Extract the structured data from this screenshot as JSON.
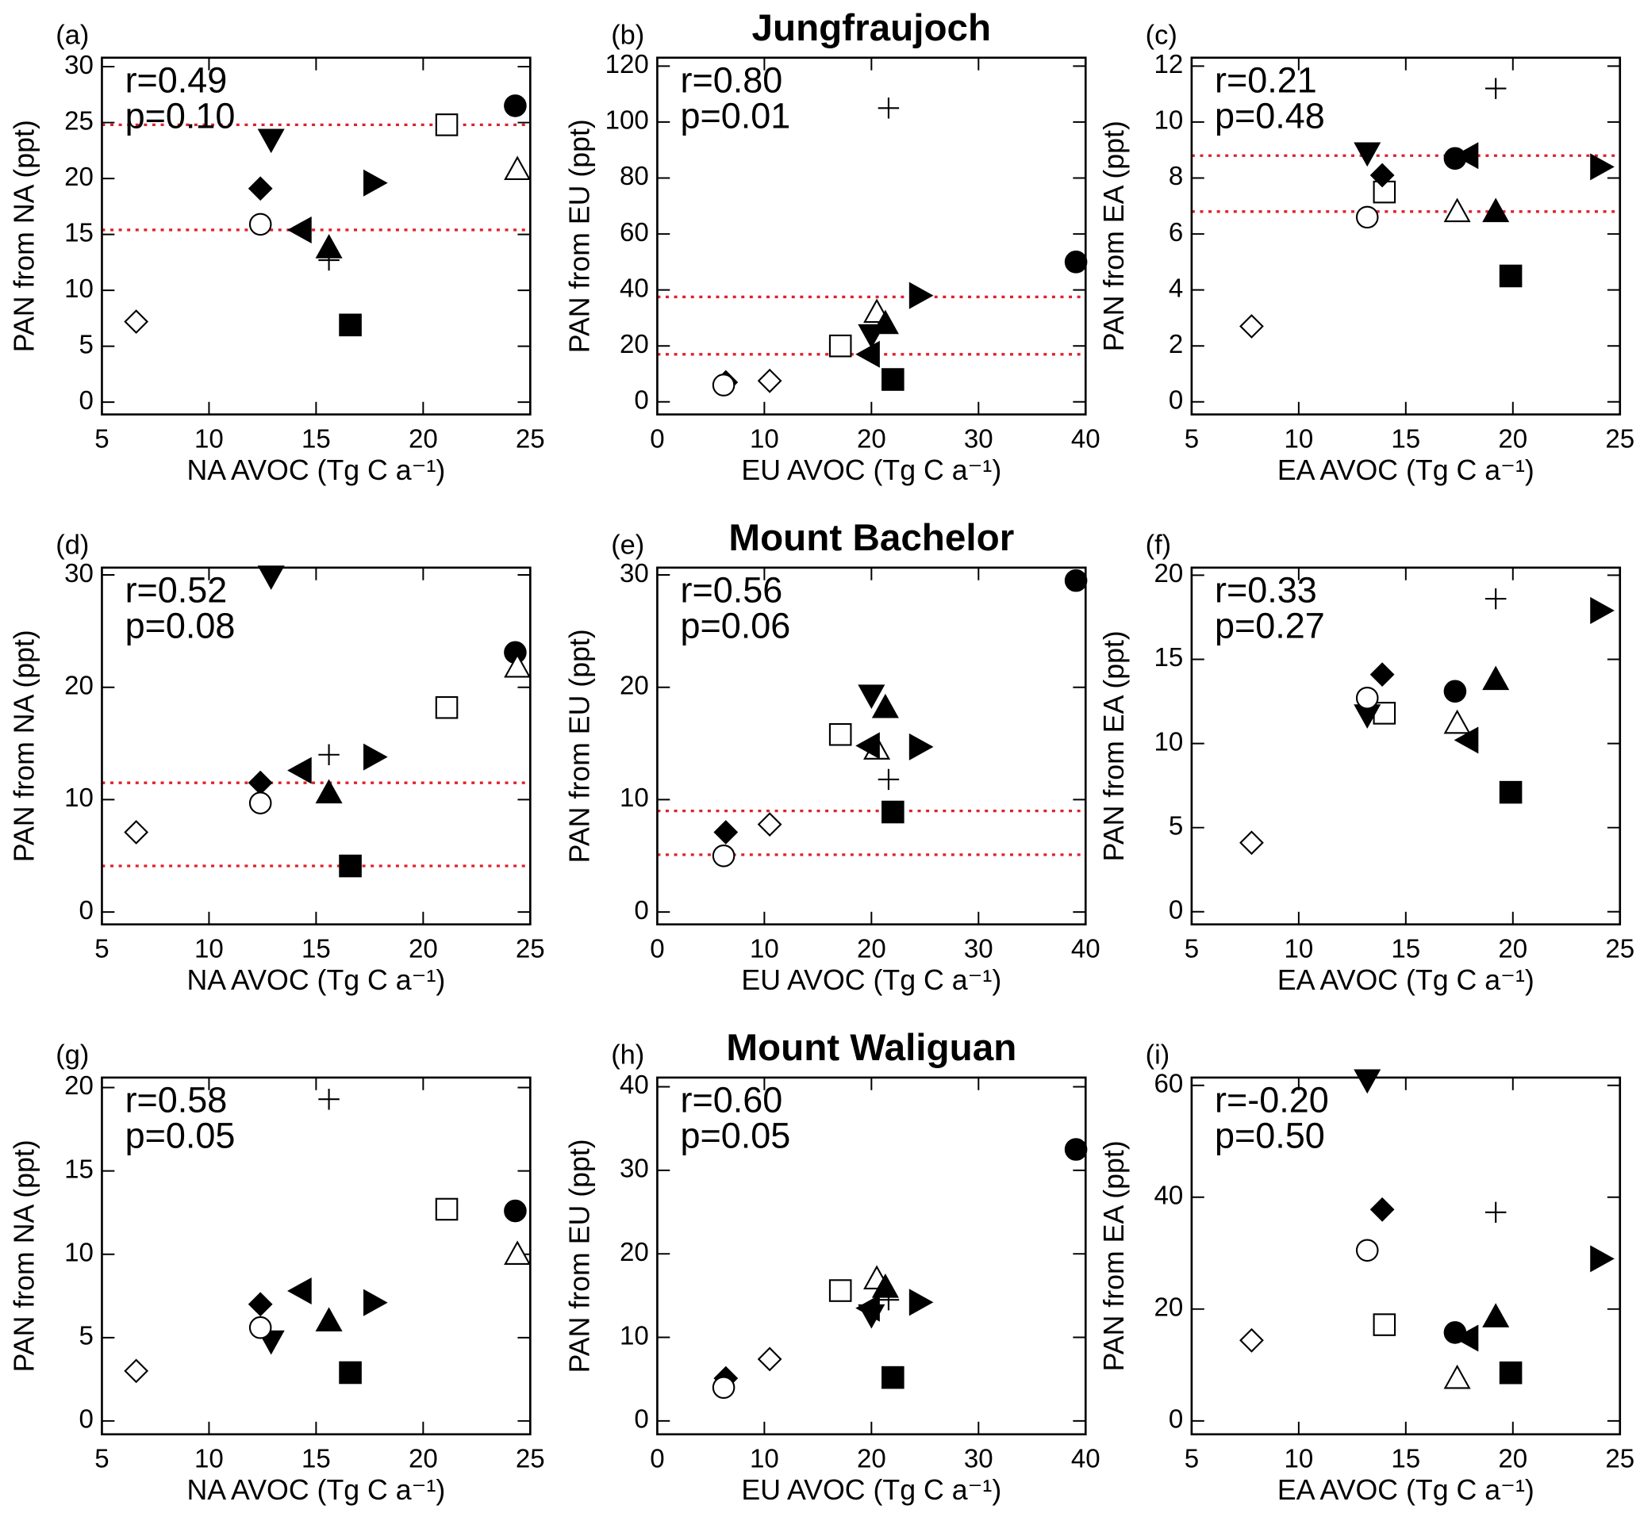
{
  "chart_data": [
    {
      "type": "scatter",
      "label": "(a)",
      "xlabel": "NA AVOC (Tg C a⁻¹)",
      "ylabel": "PAN from NA (ppt)",
      "annotations": [
        "r=0.49",
        "p=0.10"
      ],
      "xlim": [
        5,
        25
      ],
      "xticks": [
        5,
        10,
        15,
        20,
        25
      ],
      "ylim": [
        -1.1,
        30.8
      ],
      "yticks": [
        0,
        5,
        10,
        15,
        20,
        25,
        30
      ],
      "markers": [
        "circle-filled",
        "square-open",
        "triangle-up-open",
        "triangle-down-filled",
        "diamond-filled",
        "circle-open",
        "triangle-left-filled",
        "plus",
        "triangle-up-filled",
        "triangle-right-filled",
        "square-filled",
        "diamond-open"
      ],
      "x": [
        24.3,
        21.1,
        24.4,
        12.9,
        12.4,
        12.4,
        14.3,
        15.6,
        15.6,
        17.7,
        16.6,
        6.6
      ],
      "values": [
        26.5,
        24.8,
        20.8,
        23.5,
        19.1,
        15.9,
        15.4,
        12.7,
        13.8,
        19.6,
        6.9,
        7.2
      ],
      "hlines": [
        24.8,
        15.4
      ],
      "hline_color": "#e0202a",
      "color": "#000000"
    },
    {
      "type": "scatter",
      "label": "(b)",
      "title": "Jungfraujoch",
      "xlabel": "EU AVOC (Tg C a⁻¹)",
      "ylabel": "PAN from EU (ppt)",
      "annotations": [
        "r=0.80",
        "p=0.01"
      ],
      "xlim": [
        0,
        40
      ],
      "xticks": [
        0,
        10,
        20,
        30,
        40
      ],
      "ylim": [
        -4.5,
        123
      ],
      "yticks": [
        0,
        20,
        40,
        60,
        80,
        100,
        120
      ],
      "markers": [
        "circle-filled",
        "square-open",
        "triangle-up-open",
        "triangle-down-filled",
        "diamond-filled",
        "circle-open",
        "triangle-left-filled",
        "plus",
        "triangle-up-filled",
        "triangle-right-filled",
        "square-filled",
        "diamond-open"
      ],
      "x": [
        39.1,
        17.1,
        20.5,
        20,
        6.4,
        6.2,
        19.8,
        21.6,
        21.3,
        24.5,
        22,
        10.5
      ],
      "values": [
        50,
        20,
        32,
        24,
        7,
        6,
        17,
        105,
        28,
        38,
        8,
        7.5
      ],
      "hlines": [
        37.5,
        17
      ],
      "hline_color": "#e0202a",
      "color": "#000000"
    },
    {
      "type": "scatter",
      "label": "(c)",
      "xlabel": "EA AVOC (Tg C a⁻¹)",
      "ylabel": "PAN from EA (ppt)",
      "annotations": [
        "r=0.21",
        "p=0.48"
      ],
      "xlim": [
        5,
        25
      ],
      "xticks": [
        5,
        10,
        15,
        20,
        25
      ],
      "ylim": [
        -0.45,
        12.3
      ],
      "yticks": [
        0,
        2,
        4,
        6,
        8,
        10,
        12
      ],
      "markers": [
        "circle-filled",
        "square-open",
        "triangle-up-open",
        "triangle-down-filled",
        "diamond-filled",
        "circle-open",
        "triangle-left-filled",
        "plus",
        "triangle-up-filled",
        "triangle-right-filled",
        "square-filled",
        "diamond-open"
      ],
      "x": [
        17.3,
        14,
        17.4,
        13.2,
        13.9,
        13.2,
        17.9,
        19.2,
        19.2,
        24.1,
        19.9,
        7.8
      ],
      "values": [
        8.7,
        7.5,
        6.8,
        8.9,
        8.1,
        6.6,
        8.8,
        11.2,
        6.8,
        8.4,
        4.5,
        2.7
      ],
      "hlines": [
        8.8,
        6.8
      ],
      "hline_color": "#e0202a",
      "color": "#000000"
    },
    {
      "type": "scatter",
      "label": "(d)",
      "xlabel": "NA AVOC (Tg C a⁻¹)",
      "ylabel": "PAN from NA (ppt)",
      "annotations": [
        "r=0.52",
        "p=0.08"
      ],
      "xlim": [
        5,
        25
      ],
      "xticks": [
        5,
        10,
        15,
        20,
        25
      ],
      "ylim": [
        -1.1,
        30.65
      ],
      "yticks": [
        0,
        10,
        20,
        30
      ],
      "markers": [
        "circle-filled",
        "square-open",
        "triangle-up-open",
        "triangle-down-filled",
        "diamond-filled",
        "circle-open",
        "triangle-left-filled",
        "plus",
        "triangle-up-filled",
        "triangle-right-filled",
        "square-filled",
        "diamond-open"
      ],
      "x": [
        24.3,
        21.1,
        24.4,
        12.9,
        12.4,
        12.4,
        14.3,
        15.6,
        15.6,
        17.7,
        16.6,
        6.6
      ],
      "values": [
        23.1,
        18.2,
        21.8,
        29.9,
        11.5,
        9.7,
        12.6,
        14,
        10.6,
        13.8,
        4.1,
        7.1
      ],
      "hlines": [
        11.5,
        4.1
      ],
      "hline_color": "#e0202a",
      "color": "#000000"
    },
    {
      "type": "scatter",
      "label": "(e)",
      "title": "Mount Bachelor",
      "xlabel": "EU AVOC (Tg C a⁻¹)",
      "ylabel": "PAN from EU (ppt)",
      "annotations": [
        "r=0.56",
        "p=0.06"
      ],
      "xlim": [
        0,
        40
      ],
      "xticks": [
        0,
        10,
        20,
        30,
        40
      ],
      "ylim": [
        -1.1,
        30.65
      ],
      "yticks": [
        0,
        10,
        20,
        30
      ],
      "markers": [
        "circle-filled",
        "square-open",
        "triangle-up-open",
        "triangle-down-filled",
        "diamond-filled",
        "circle-open",
        "triangle-left-filled",
        "plus",
        "triangle-up-filled",
        "triangle-right-filled",
        "square-filled",
        "diamond-open"
      ],
      "x": [
        39.1,
        17.1,
        20.5,
        20,
        6.4,
        6.2,
        19.8,
        21.6,
        21.3,
        24.5,
        22,
        10.5
      ],
      "values": [
        29.5,
        15.8,
        14.5,
        19.3,
        7.1,
        5,
        14.8,
        11.8,
        18.2,
        14.7,
        8.9,
        7.8
      ],
      "hlines": [
        9,
        5.1
      ],
      "hline_color": "#e0202a",
      "color": "#000000"
    },
    {
      "type": "scatter",
      "label": "(f)",
      "xlabel": "EA AVOC (Tg C a⁻¹)",
      "ylabel": "PAN from EA (ppt)",
      "annotations": [
        "r=0.33",
        "p=0.27"
      ],
      "xlim": [
        5,
        25
      ],
      "xticks": [
        5,
        10,
        15,
        20,
        25
      ],
      "ylim": [
        -0.75,
        20.45
      ],
      "yticks": [
        0,
        5,
        10,
        15,
        20
      ],
      "markers": [
        "circle-filled",
        "square-open",
        "triangle-up-open",
        "triangle-down-filled",
        "diamond-filled",
        "circle-open",
        "triangle-left-filled",
        "plus",
        "triangle-up-filled",
        "triangle-right-filled",
        "square-filled",
        "diamond-open"
      ],
      "x": [
        17.3,
        14,
        17.4,
        13.2,
        13.9,
        13.2,
        17.9,
        19.2,
        19.2,
        24.1,
        19.9,
        7.8
      ],
      "values": [
        13.1,
        11.8,
        11.2,
        11.7,
        14.1,
        12.7,
        10.2,
        18.6,
        13.8,
        17.9,
        7.1,
        4.1
      ],
      "color": "#000000"
    },
    {
      "type": "scatter",
      "label": "(g)",
      "xlabel": "NA AVOC (Tg C a⁻¹)",
      "ylabel": "PAN from NA (ppt)",
      "annotations": [
        "r=0.58",
        "p=0.05"
      ],
      "xlim": [
        5,
        25
      ],
      "xticks": [
        5,
        10,
        15,
        20,
        25
      ],
      "ylim": [
        -0.8,
        20.6
      ],
      "yticks": [
        0,
        5,
        10,
        15,
        20
      ],
      "markers": [
        "circle-filled",
        "square-open",
        "triangle-up-open",
        "triangle-down-filled",
        "diamond-filled",
        "circle-open",
        "triangle-left-filled",
        "plus",
        "triangle-up-filled",
        "triangle-right-filled",
        "square-filled",
        "diamond-open"
      ],
      "x": [
        24.3,
        21.1,
        24.4,
        12.9,
        12.4,
        12.4,
        14.3,
        15.6,
        15.6,
        17.7,
        16.6,
        6.6
      ],
      "values": [
        12.6,
        12.7,
        10,
        4.8,
        7,
        5.6,
        7.8,
        19.3,
        6,
        7.1,
        2.9,
        3
      ],
      "color": "#000000"
    },
    {
      "type": "scatter",
      "label": "(h)",
      "title": "Mount Waliguan",
      "xlabel": "EU AVOC (Tg C a⁻¹)",
      "ylabel": "PAN from EU (ppt)",
      "annotations": [
        "r=0.60",
        "p=0.05"
      ],
      "xlim": [
        0,
        40
      ],
      "xticks": [
        0,
        10,
        20,
        30,
        40
      ],
      "ylim": [
        -1.6,
        41.1
      ],
      "yticks": [
        0,
        10,
        20,
        30,
        40
      ],
      "markers": [
        "circle-filled",
        "square-open",
        "triangle-up-open",
        "triangle-down-filled",
        "diamond-filled",
        "circle-open",
        "triangle-left-filled",
        "plus",
        "triangle-up-filled",
        "triangle-right-filled",
        "square-filled",
        "diamond-open"
      ],
      "x": [
        39.1,
        17.1,
        20.5,
        20,
        6.4,
        6.2,
        19.8,
        21.6,
        21.3,
        24.5,
        22,
        10.5
      ],
      "values": [
        32.5,
        15.6,
        17,
        12.7,
        5.1,
        4,
        13.5,
        14.5,
        16,
        14.2,
        5.2,
        7.4
      ],
      "color": "#000000"
    },
    {
      "type": "scatter",
      "label": "(i)",
      "xlabel": "EA AVOC (Tg C a⁻¹)",
      "ylabel": "PAN from EA (ppt)",
      "annotations": [
        "r=-0.20",
        "p=0.50"
      ],
      "xlim": [
        5,
        25
      ],
      "xticks": [
        5,
        10,
        15,
        20,
        25
      ],
      "ylim": [
        -2.4,
        61.4
      ],
      "yticks": [
        0,
        20,
        40,
        60
      ],
      "markers": [
        "circle-filled",
        "square-open",
        "triangle-up-open",
        "triangle-down-filled",
        "diamond-filled",
        "circle-open",
        "triangle-left-filled",
        "plus",
        "triangle-up-filled",
        "triangle-right-filled",
        "square-filled",
        "diamond-open"
      ],
      "x": [
        17.3,
        14,
        17.4,
        13.2,
        13.9,
        13.2,
        17.9,
        19.2,
        19.2,
        24.1,
        19.9,
        7.8
      ],
      "values": [
        15.8,
        17.2,
        7.6,
        61,
        37.8,
        30.5,
        14.8,
        37.3,
        18.6,
        29,
        8.6,
        14.4
      ],
      "color": "#000000"
    }
  ]
}
